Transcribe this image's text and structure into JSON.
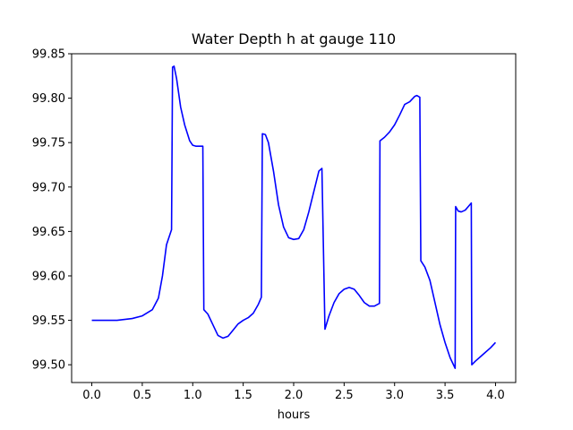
{
  "chart_data": {
    "type": "line",
    "title": "Water Depth h at gauge 110",
    "xlabel": "hours",
    "ylabel": "",
    "xlim": [
      -0.2,
      4.2
    ],
    "ylim": [
      99.48,
      99.85
    ],
    "grid": false,
    "x_ticks": [
      0.0,
      0.5,
      1.0,
      1.5,
      2.0,
      2.5,
      3.0,
      3.5,
      4.0
    ],
    "x_tick_labels": [
      "0.0",
      "0.5",
      "1.0",
      "1.5",
      "2.0",
      "2.5",
      "3.0",
      "3.5",
      "4.0"
    ],
    "y_ticks": [
      99.5,
      99.55,
      99.6,
      99.65,
      99.7,
      99.75,
      99.8,
      99.85
    ],
    "y_tick_labels": [
      "99.50",
      "99.55",
      "99.60",
      "99.65",
      "99.70",
      "99.75",
      "99.80",
      "99.85"
    ],
    "series": [
      {
        "color": "#0000ff",
        "points": [
          [
            0.0,
            99.55
          ],
          [
            0.25,
            99.55
          ],
          [
            0.4,
            99.552
          ],
          [
            0.5,
            99.555
          ],
          [
            0.6,
            99.562
          ],
          [
            0.66,
            99.575
          ],
          [
            0.7,
            99.6
          ],
          [
            0.74,
            99.635
          ],
          [
            0.79,
            99.652
          ],
          [
            0.8,
            99.835
          ],
          [
            0.815,
            99.836
          ],
          [
            0.84,
            99.822
          ],
          [
            0.88,
            99.79
          ],
          [
            0.92,
            99.77
          ],
          [
            0.97,
            99.752
          ],
          [
            1.0,
            99.747
          ],
          [
            1.03,
            99.746
          ],
          [
            1.1,
            99.746
          ],
          [
            1.11,
            99.562
          ],
          [
            1.15,
            99.557
          ],
          [
            1.2,
            99.545
          ],
          [
            1.25,
            99.533
          ],
          [
            1.3,
            99.53
          ],
          [
            1.35,
            99.532
          ],
          [
            1.4,
            99.539
          ],
          [
            1.45,
            99.546
          ],
          [
            1.5,
            99.55
          ],
          [
            1.55,
            99.553
          ],
          [
            1.6,
            99.558
          ],
          [
            1.65,
            99.568
          ],
          [
            1.68,
            99.576
          ],
          [
            1.69,
            99.76
          ],
          [
            1.72,
            99.759
          ],
          [
            1.75,
            99.75
          ],
          [
            1.8,
            99.718
          ],
          [
            1.85,
            99.68
          ],
          [
            1.9,
            99.655
          ],
          [
            1.95,
            99.643
          ],
          [
            2.0,
            99.641
          ],
          [
            2.05,
            99.642
          ],
          [
            2.1,
            99.652
          ],
          [
            2.15,
            99.672
          ],
          [
            2.2,
            99.695
          ],
          [
            2.25,
            99.718
          ],
          [
            2.28,
            99.721
          ],
          [
            2.31,
            99.54
          ],
          [
            2.35,
            99.555
          ],
          [
            2.4,
            99.57
          ],
          [
            2.45,
            99.58
          ],
          [
            2.5,
            99.585
          ],
          [
            2.55,
            99.587
          ],
          [
            2.6,
            99.585
          ],
          [
            2.65,
            99.578
          ],
          [
            2.7,
            99.57
          ],
          [
            2.75,
            99.566
          ],
          [
            2.8,
            99.566
          ],
          [
            2.85,
            99.569
          ],
          [
            2.855,
            99.752
          ],
          [
            2.9,
            99.756
          ],
          [
            2.95,
            99.762
          ],
          [
            3.0,
            99.77
          ],
          [
            3.05,
            99.781
          ],
          [
            3.1,
            99.793
          ],
          [
            3.15,
            99.796
          ],
          [
            3.2,
            99.802
          ],
          [
            3.22,
            99.803
          ],
          [
            3.25,
            99.801
          ],
          [
            3.26,
            99.617
          ],
          [
            3.3,
            99.61
          ],
          [
            3.35,
            99.595
          ],
          [
            3.4,
            99.57
          ],
          [
            3.45,
            99.545
          ],
          [
            3.5,
            99.525
          ],
          [
            3.55,
            99.508
          ],
          [
            3.6,
            99.496
          ],
          [
            3.605,
            99.678
          ],
          [
            3.63,
            99.673
          ],
          [
            3.66,
            99.672
          ],
          [
            3.7,
            99.674
          ],
          [
            3.73,
            99.678
          ],
          [
            3.76,
            99.682
          ],
          [
            3.765,
            99.5
          ],
          [
            3.8,
            99.504
          ],
          [
            3.85,
            99.509
          ],
          [
            3.9,
            99.514
          ],
          [
            3.95,
            99.519
          ],
          [
            4.0,
            99.525
          ]
        ]
      }
    ]
  }
}
